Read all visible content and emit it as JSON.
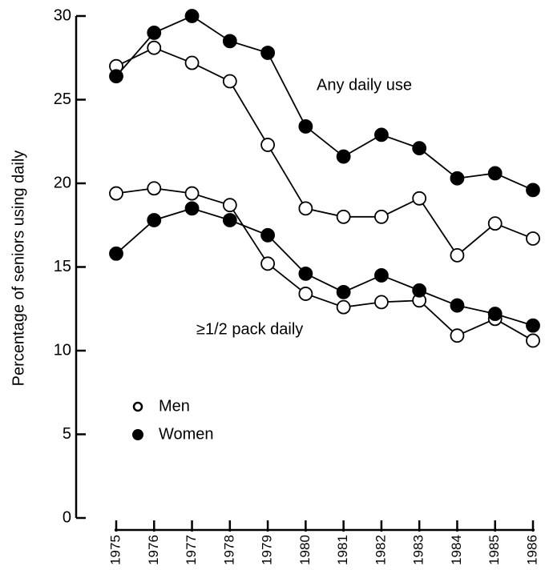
{
  "chart_data": {
    "type": "line",
    "ylabel": "Percentage of seniors using daily",
    "categories": [
      "1975",
      "1976",
      "1977",
      "1978",
      "1979",
      "1980",
      "1981",
      "1982",
      "1983",
      "1984",
      "1985",
      "1986"
    ],
    "ylim": [
      0,
      30
    ],
    "yticks": [
      0,
      5,
      10,
      15,
      20,
      25,
      30
    ],
    "series": [
      {
        "name": "Men",
        "group": "Any daily use",
        "color": "#ffffff",
        "values": [
          27.0,
          28.1,
          27.2,
          26.1,
          22.3,
          18.5,
          18.0,
          18.0,
          19.1,
          15.7,
          17.6,
          16.7
        ]
      },
      {
        "name": "Women",
        "group": "Any daily use",
        "color": "#000000",
        "values": [
          26.4,
          29.0,
          30.0,
          28.5,
          27.8,
          23.4,
          21.6,
          22.9,
          22.1,
          20.3,
          20.6,
          19.6
        ]
      },
      {
        "name": "Men",
        "group": "≥1/2 pack daily",
        "color": "#ffffff",
        "values": [
          19.4,
          19.7,
          19.4,
          18.7,
          15.2,
          13.4,
          12.6,
          12.9,
          13.0,
          10.9,
          11.9,
          10.6
        ]
      },
      {
        "name": "Women",
        "group": "≥1/2 pack daily",
        "color": "#000000",
        "values": [
          15.8,
          17.8,
          18.5,
          17.8,
          16.9,
          14.6,
          13.5,
          14.5,
          13.6,
          12.7,
          12.2,
          11.5
        ]
      }
    ]
  }
}
